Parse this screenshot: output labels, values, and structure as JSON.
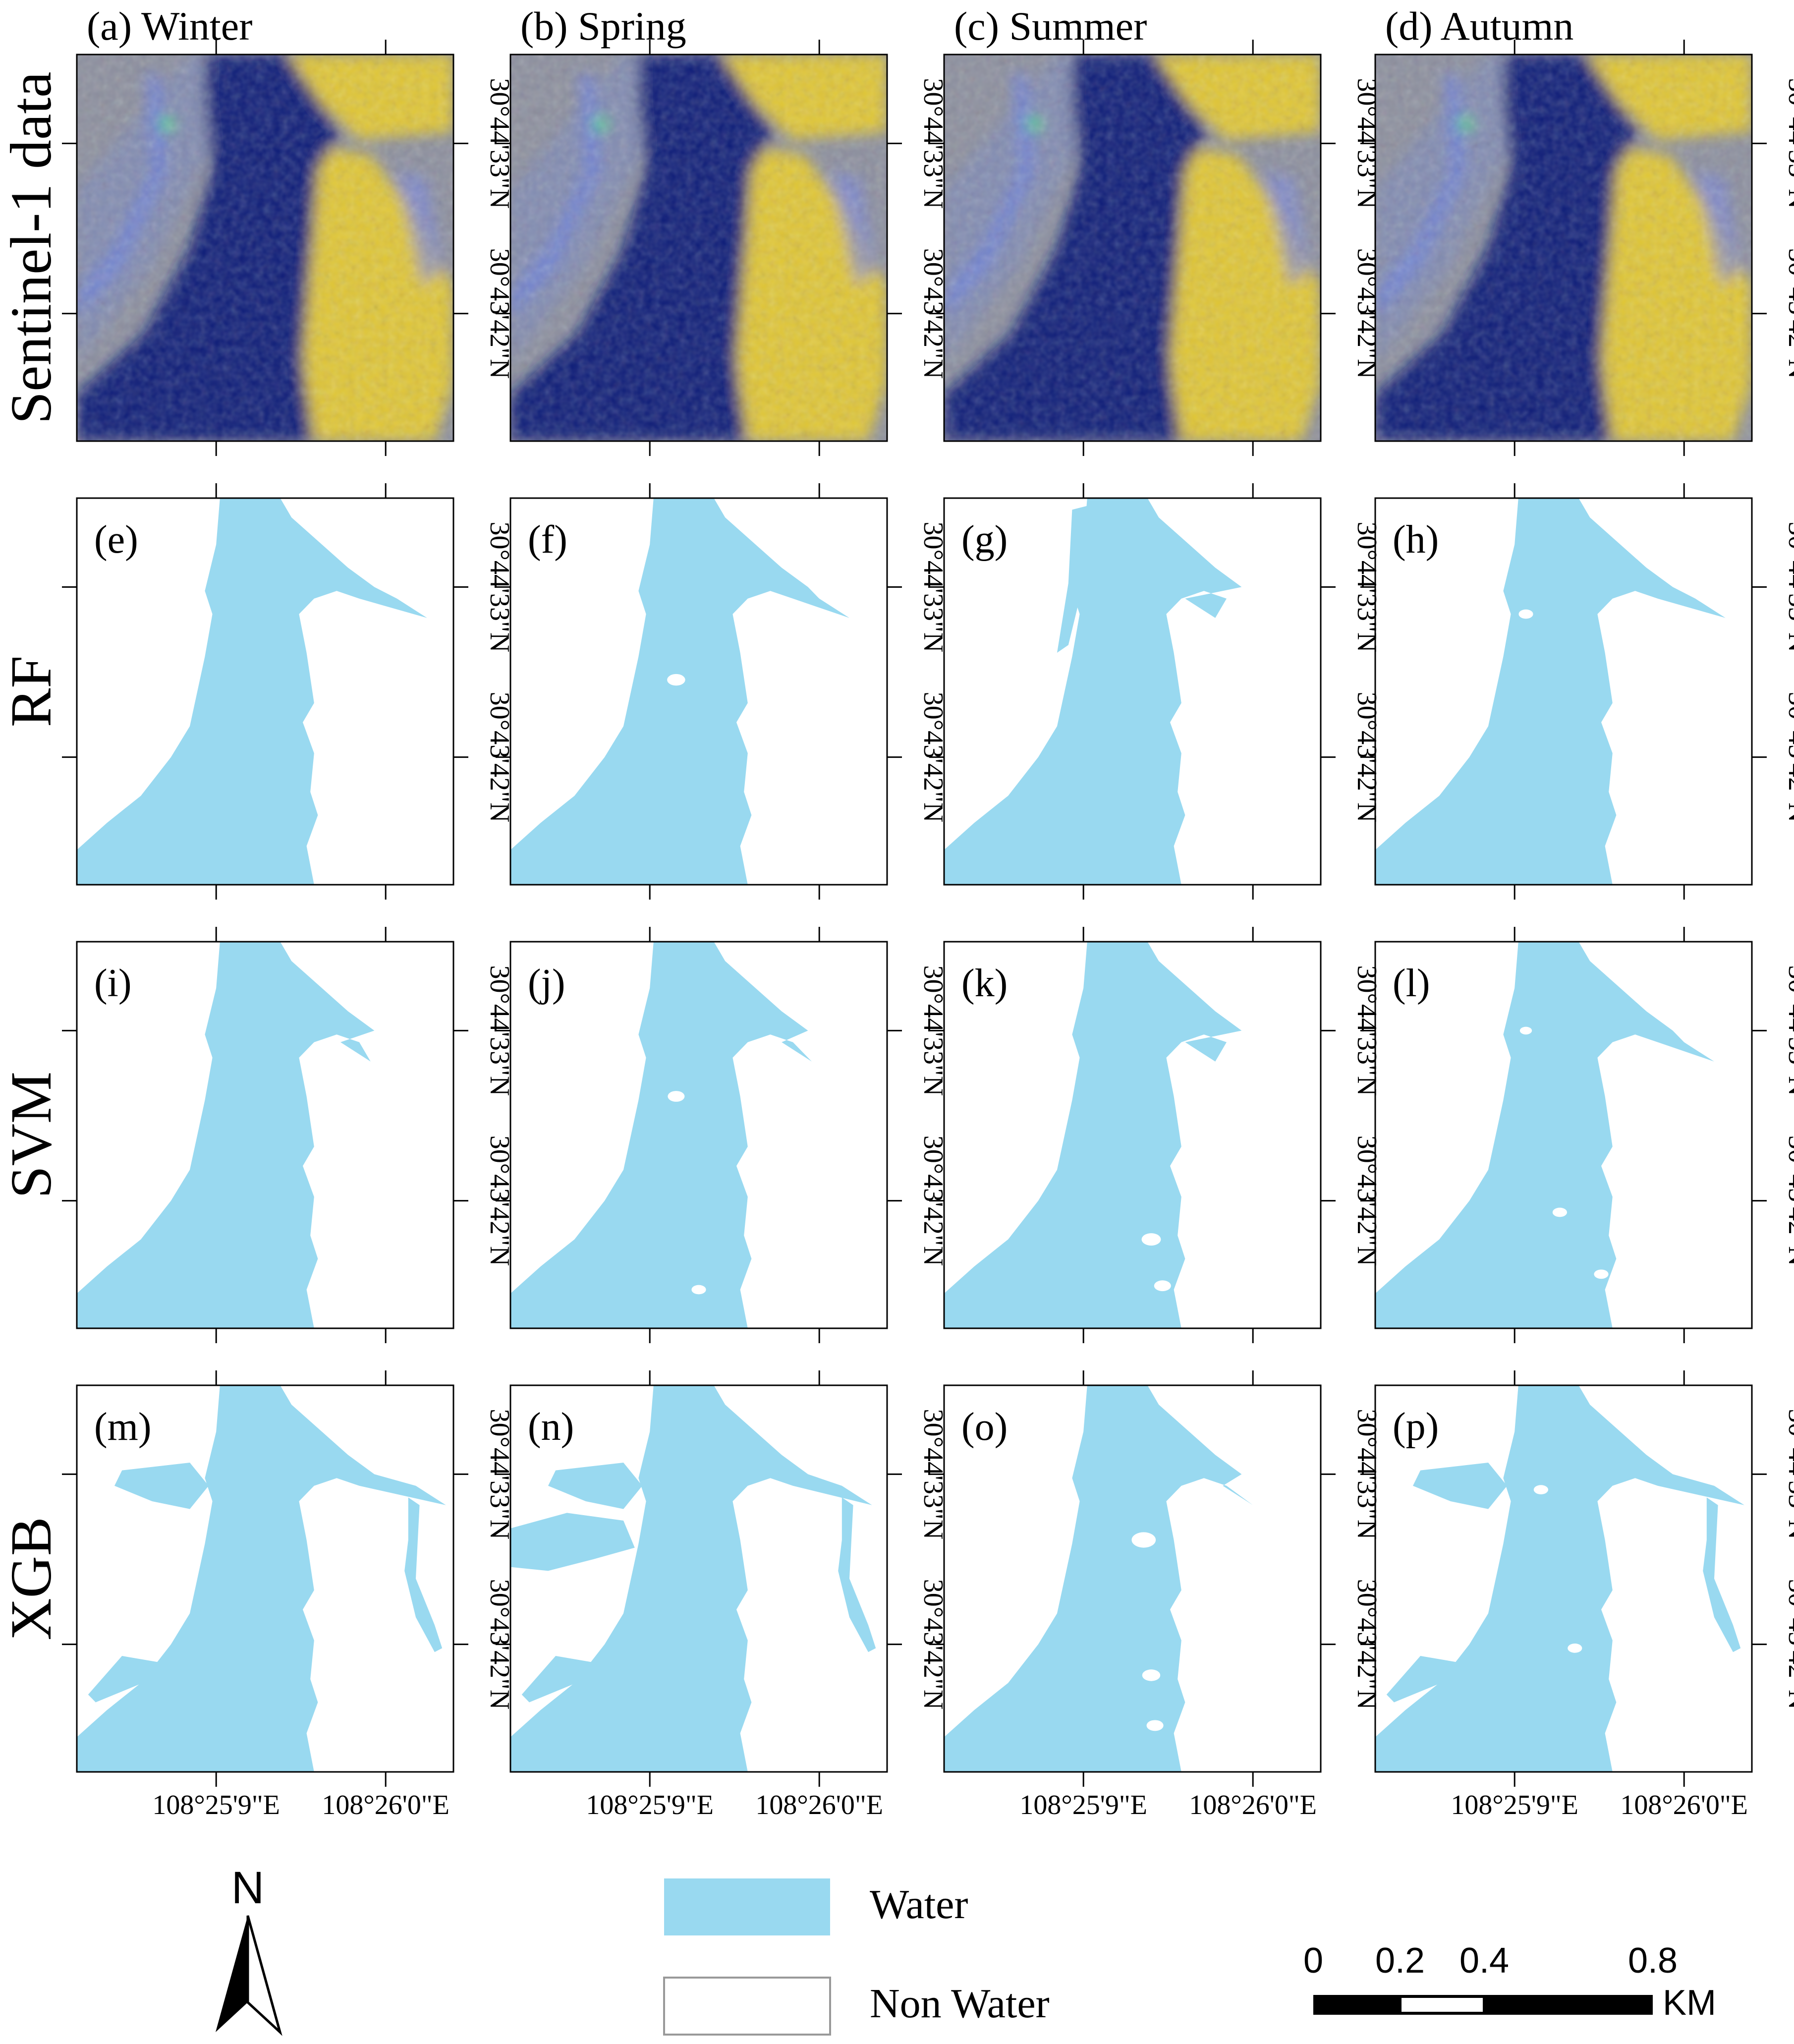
{
  "columns": [
    "(a) Winter",
    "(b) Spring",
    "(c) Summer",
    "(d) Autumn"
  ],
  "rows": [
    {
      "label": "Sentinel-1 data",
      "type": "sar"
    },
    {
      "label": "RF",
      "type": "classification",
      "panels": [
        "(e)",
        "(f)",
        "(g)",
        "(h)"
      ]
    },
    {
      "label": "SVM",
      "type": "classification",
      "panels": [
        "(i)",
        "(j)",
        "(k)",
        "(l)"
      ]
    },
    {
      "label": "XGB",
      "type": "classification",
      "panels": [
        "(m)",
        "(n)",
        "(o)",
        "(p)"
      ]
    }
  ],
  "lat_labels": [
    "30°44'33\"N",
    "30°43'42\"N"
  ],
  "lon_labels": [
    "108°25'9\"E",
    "108°26'0\"E"
  ],
  "legend": {
    "items": [
      {
        "label": "Water",
        "color": "#99d9f0"
      },
      {
        "label": "Non Water",
        "color": "#ffffff"
      }
    ]
  },
  "north_arrow": {
    "label": "N"
  },
  "scale_bar": {
    "ticks": [
      "0",
      "0.2",
      "0.4",
      "0.8"
    ],
    "unit": "KM"
  },
  "colors": {
    "water": "#99d9f0",
    "sar_water": "#0a1a78",
    "sar_land": "#e0c634",
    "sar_mixed": "#8c8f9e"
  }
}
